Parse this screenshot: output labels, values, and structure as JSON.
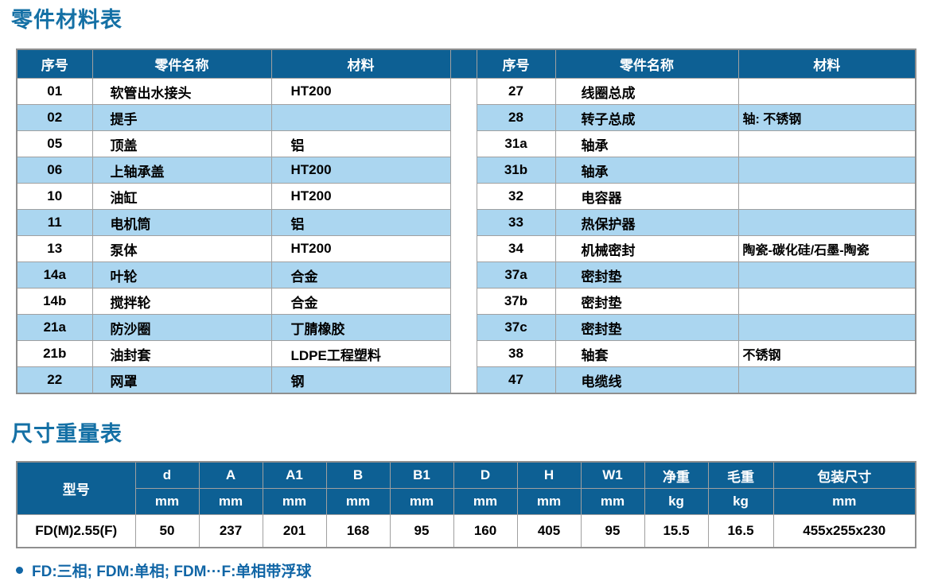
{
  "colors": {
    "header_blue": "#0D6094",
    "row_blue": "#ABD6F0",
    "title_blue": "#1470A5",
    "footnote_blue": "#1166A6",
    "border_gray": "#A0A0A0",
    "outer_border_gray": "#8F8F8F",
    "text_black": "#000000"
  },
  "parts_table": {
    "title": "零件材料表",
    "columns": [
      "序号",
      "零件名称",
      "材料"
    ],
    "left_rows": [
      {
        "no": "01",
        "name": "软管出水接头",
        "material": "HT200"
      },
      {
        "no": "02",
        "name": "提手",
        "material": ""
      },
      {
        "no": "05",
        "name": "顶盖",
        "material": "铝"
      },
      {
        "no": "06",
        "name": "上轴承盖",
        "material": "HT200"
      },
      {
        "no": "10",
        "name": "油缸",
        "material": "HT200"
      },
      {
        "no": "11",
        "name": "电机筒",
        "material": "铝"
      },
      {
        "no": "13",
        "name": "泵体",
        "material": "HT200"
      },
      {
        "no": "14a",
        "name": "叶轮",
        "material": "合金"
      },
      {
        "no": "14b",
        "name": "搅拌轮",
        "material": "合金"
      },
      {
        "no": "21a",
        "name": "防沙圈",
        "material": "丁腈橡胶"
      },
      {
        "no": "21b",
        "name": "油封套",
        "material": "LDPE工程塑料"
      },
      {
        "no": "22",
        "name": "网罩",
        "material": "钢"
      }
    ],
    "right_rows": [
      {
        "no": "27",
        "name": "线圈总成",
        "material": ""
      },
      {
        "no": "28",
        "name": "转子总成",
        "material": "轴: 不锈钢"
      },
      {
        "no": "31a",
        "name": "轴承",
        "material": ""
      },
      {
        "no": "31b",
        "name": "轴承",
        "material": ""
      },
      {
        "no": "32",
        "name": "电容器",
        "material": ""
      },
      {
        "no": "33",
        "name": "热保护器",
        "material": ""
      },
      {
        "no": "34",
        "name": "机械密封",
        "material": "陶瓷-碳化硅/石墨-陶瓷"
      },
      {
        "no": "37a",
        "name": "密封垫",
        "material": ""
      },
      {
        "no": "37b",
        "name": "密封垫",
        "material": ""
      },
      {
        "no": "37c",
        "name": "密封垫",
        "material": ""
      },
      {
        "no": "38",
        "name": "轴套",
        "material": "不锈钢"
      },
      {
        "no": "47",
        "name": "电缆线",
        "material": ""
      }
    ]
  },
  "dimensions_table": {
    "title": "尺寸重量表",
    "model_header": "型号",
    "columns": [
      {
        "label": "d",
        "unit": "mm"
      },
      {
        "label": "A",
        "unit": "mm"
      },
      {
        "label": "A1",
        "unit": "mm"
      },
      {
        "label": "B",
        "unit": "mm"
      },
      {
        "label": "B1",
        "unit": "mm"
      },
      {
        "label": "D",
        "unit": "mm"
      },
      {
        "label": "H",
        "unit": "mm"
      },
      {
        "label": "W1",
        "unit": "mm"
      },
      {
        "label": "净重",
        "unit": "kg"
      },
      {
        "label": "毛重",
        "unit": "kg"
      },
      {
        "label": "包装尺寸",
        "unit": "mm"
      }
    ],
    "rows": [
      {
        "model": "FD(M)2.55(F)",
        "values": [
          "50",
          "237",
          "201",
          "168",
          "95",
          "160",
          "405",
          "95",
          "15.5",
          "16.5",
          "455x255x230"
        ]
      }
    ]
  },
  "footnote": {
    "text": "FD:三相; FDM:单相; FDM···F:单相带浮球"
  }
}
